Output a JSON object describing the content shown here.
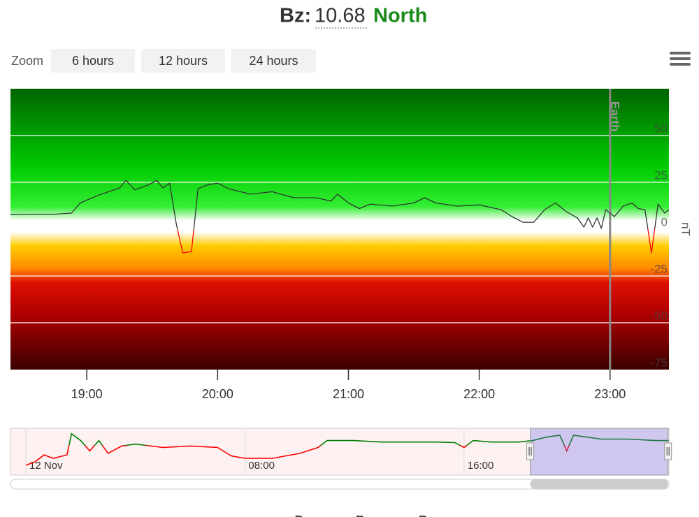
{
  "chart_data": {
    "type": "line",
    "title_prefix": "Bz:",
    "title_value": 10.68,
    "title_direction": "North",
    "zoom_label": "Zoom",
    "zoom_buttons": [
      "6 hours",
      "12 hours",
      "24 hours"
    ],
    "x": [
      "18:25",
      "18:35",
      "18:45",
      "18:53",
      "18:57",
      "19:05",
      "19:10",
      "19:15",
      "19:18",
      "19:22",
      "19:28",
      "19:32",
      "19:35",
      "19:38",
      "19:41",
      "19:44",
      "19:48",
      "19:51",
      "19:55",
      "20:00",
      "20:05",
      "20:15",
      "20:25",
      "20:35",
      "20:45",
      "20:52",
      "20:55",
      "21:00",
      "21:05",
      "21:10",
      "21:20",
      "21:30",
      "21:35",
      "21:40",
      "21:50",
      "22:00",
      "22:10",
      "22:15",
      "22:20",
      "22:25",
      "22:30",
      "22:35",
      "22:40",
      "22:45",
      "22:48",
      "22:50",
      "22:52",
      "22:54",
      "22:56",
      "22:58",
      "23:02",
      "23:06",
      "23:10",
      "23:13",
      "23:16",
      "23:19",
      "23:22",
      "23:25",
      "23:27"
    ],
    "series": [
      {
        "name": "Bz",
        "color": "#333333",
        "negative_color": "#ff0000",
        "values": [
          7.8,
          8,
          8,
          8.6,
          14,
          18,
          20,
          22,
          26,
          21,
          23.5,
          26,
          22,
          24.6,
          3,
          -12.7,
          -12,
          21.6,
          23.5,
          24.6,
          21.6,
          18.7,
          20,
          16.8,
          16.8,
          15,
          18.7,
          14,
          11,
          13.4,
          12.3,
          14,
          16.8,
          14,
          12.3,
          13,
          10.4,
          6.7,
          3.7,
          3.7,
          10.4,
          14,
          9.3,
          6,
          1.1,
          6,
          1.1,
          6,
          0.4,
          10.4,
          6.7,
          12.3,
          14,
          11,
          10.4,
          -12.7,
          13.4,
          8.6,
          10.4
        ]
      }
    ],
    "legend_hidden": [
      "Bx",
      "By"
    ],
    "xlim": [
      "18:25",
      "23:27"
    ],
    "xticks": [
      "19:00",
      "20:00",
      "21:00",
      "22:00",
      "23:00"
    ],
    "ylim": [
      -75,
      75
    ],
    "yticks": [
      -75,
      -50,
      -25,
      0,
      25,
      50
    ],
    "y_label": "nT",
    "grid": true,
    "plot_lines": [
      {
        "value": "23:00",
        "label": "Earth"
      }
    ],
    "navigator": {
      "x": [
        "00:00",
        "00:20",
        "00:40",
        "01:00",
        "01:30",
        "01:40",
        "02:00",
        "02:20",
        "02:40",
        "03:00",
        "03:30",
        "04:00",
        "05:00",
        "06:00",
        "07:00",
        "07:30",
        "08:00",
        "09:00",
        "10:00",
        "10:40",
        "11:00",
        "12:00",
        "13:00",
        "14:00",
        "15:00",
        "15:40",
        "16:00",
        "16:20",
        "17:00",
        "18:00",
        "18:30",
        "19:00",
        "19:30",
        "19:45",
        "20:00",
        "21:00",
        "22:00",
        "23:00",
        "23:29"
      ],
      "values": [
        -40,
        -33,
        -19,
        -26,
        -19,
        24,
        10,
        -11,
        10,
        -16,
        -1,
        3,
        -4,
        -1,
        -4,
        -21,
        -26,
        -26,
        -16,
        -4,
        10,
        10,
        7,
        7,
        7,
        6,
        -4,
        10,
        7,
        7,
        10,
        17,
        21,
        -11,
        21,
        13,
        13,
        10,
        10
      ],
      "color": "#008000",
      "negative_color": "#ff0000",
      "xlim": [
        "00:00",
        "23:29"
      ],
      "ylim": [
        -60,
        35
      ],
      "xticks": [
        {
          "value": "00:00",
          "label": "12 Nov"
        },
        "08:00",
        "16:00"
      ]
    }
  }
}
